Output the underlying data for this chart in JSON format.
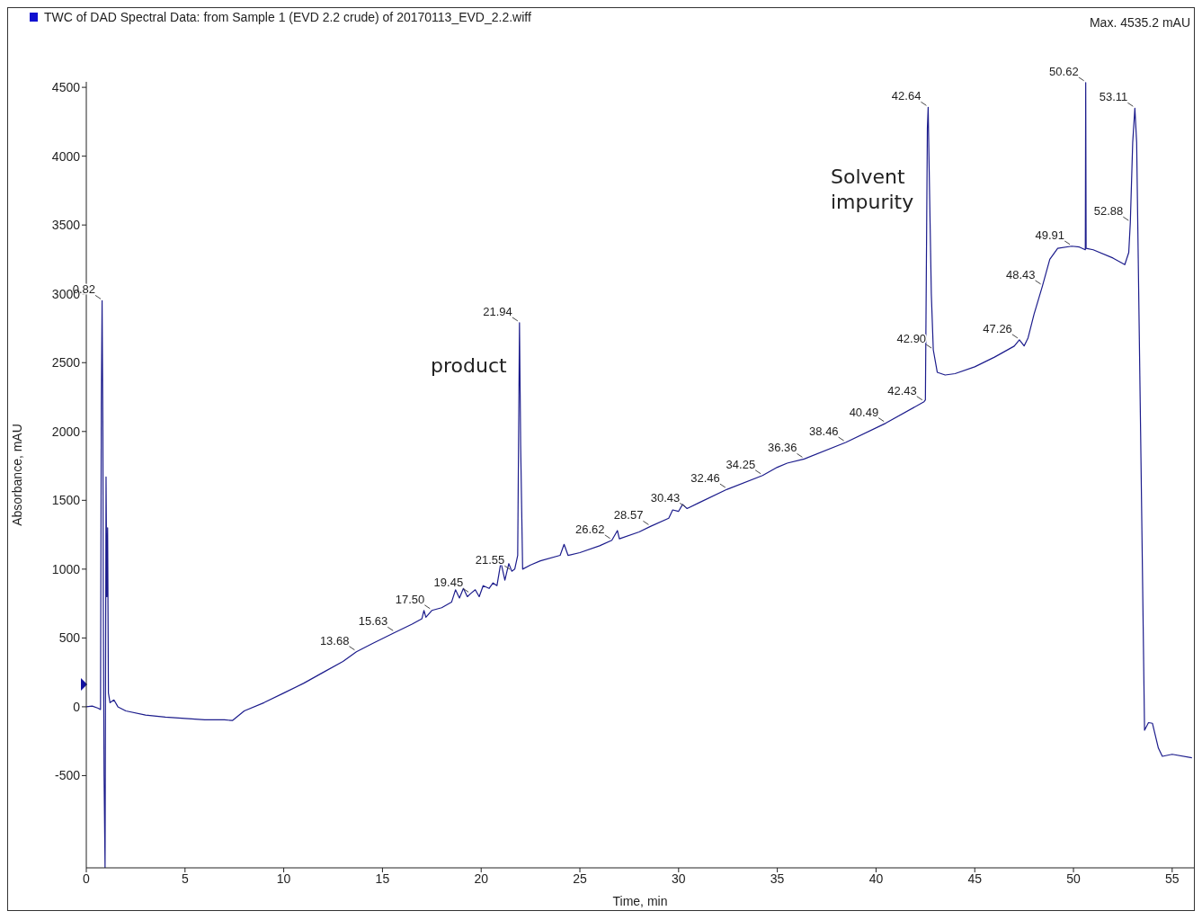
{
  "chart_data": {
    "type": "line",
    "title": "TWC of DAD Spectral Data: from Sample 1 (EVD 2.2 crude) of 20170113_EVD_2.2.wiff",
    "xlabel": "Time, min",
    "ylabel": "Absorbance, mAU",
    "x": [
      0,
      0.3,
      0.6,
      0.72,
      0.76,
      0.8,
      0.84,
      0.86,
      0.9,
      0.95,
      0.98,
      1.0,
      1.04,
      1.08,
      1.12,
      1.2,
      1.4,
      1.6,
      2,
      3,
      4,
      5,
      6,
      7,
      7.4,
      8,
      9,
      10,
      11,
      12,
      13,
      13.68,
      14.5,
      15.63,
      16.5,
      17,
      17.1,
      17.2,
      17.5,
      18,
      18.5,
      18.7,
      18.9,
      19.1,
      19.3,
      19.45,
      19.7,
      19.9,
      20.1,
      20.4,
      20.6,
      20.8,
      21,
      21.2,
      21.4,
      21.55,
      21.7,
      21.85,
      21.94,
      22.0,
      22.1,
      22.5,
      23,
      24,
      24.2,
      24.4,
      25,
      26,
      26.62,
      26.9,
      27,
      28,
      28.57,
      29.5,
      29.7,
      30,
      30.2,
      30.43,
      31,
      32.46,
      34.25,
      35,
      35.5,
      36.36,
      38.46,
      40.49,
      42.43,
      42.5,
      42.6,
      42.64,
      42.68,
      42.8,
      42.9,
      43.1,
      43.5,
      44,
      45,
      46,
      47,
      47.26,
      47.5,
      47.7,
      48,
      48.43,
      48.8,
      49.2,
      49.91,
      50.3,
      50.6,
      50.62,
      50.64,
      51,
      52,
      52.6,
      52.8,
      52.88,
      53.0,
      53.11,
      53.2,
      53.4,
      53.6,
      53.8,
      54.0,
      54.3,
      54.5,
      55,
      56
    ],
    "series": [
      {
        "color": "#1c1c8c",
        "values": [
          0,
          5,
          -10,
          -20,
          2180,
          2950,
          2000,
          800,
          -500,
          -1170,
          500,
          1670,
          800,
          1300,
          100,
          30,
          50,
          0,
          -30,
          -60,
          -75,
          -85,
          -95,
          -95,
          -100,
          -30,
          30,
          100,
          170,
          250,
          330,
          400,
          460,
          540,
          600,
          640,
          700,
          650,
          700,
          720,
          760,
          850,
          790,
          860,
          800,
          820,
          850,
          800,
          880,
          860,
          900,
          880,
          1050,
          920,
          1040,
          985,
          1000,
          1100,
          2790,
          1900,
          1000,
          1030,
          1060,
          1100,
          1180,
          1100,
          1120,
          1170,
          1210,
          1280,
          1220,
          1270,
          1310,
          1370,
          1430,
          1420,
          1470,
          1440,
          1480,
          1580,
          1680,
          1740,
          1770,
          1800,
          1920,
          2060,
          2216,
          2230,
          4200,
          4355,
          4000,
          3000,
          2593,
          2430,
          2410,
          2420,
          2470,
          2540,
          2620,
          2666,
          2621,
          2680,
          2850,
          3058,
          3250,
          3330,
          3346,
          3340,
          3320,
          4535,
          3330,
          3320,
          3260,
          3212,
          3300,
          3520,
          4100,
          4349,
          4100,
          2000,
          -170,
          -115,
          -120,
          -300,
          -360,
          -345,
          -370
        ]
      }
    ],
    "xlim": [
      0,
      56.1
    ],
    "xticks": [
      0,
      5,
      10,
      15,
      20,
      25,
      30,
      35,
      40,
      45,
      50,
      55
    ],
    "ylim": [
      -1170,
      4540
    ],
    "yticks": [
      -500,
      0,
      500,
      1000,
      1500,
      2000,
      2500,
      3000,
      3500,
      4000,
      4500
    ],
    "grid": false,
    "legend": false,
    "marker": "none",
    "line_style": "solid",
    "annotations": [
      "Max. 4535.2 mAU",
      {
        "text": "0.82",
        "x": 0.82,
        "y": 2950
      },
      {
        "text": "13.68",
        "x": 13.68,
        "y": 400
      },
      {
        "text": "15.63",
        "x": 15.63,
        "y": 540
      },
      {
        "text": "17.50",
        "x": 17.5,
        "y": 700
      },
      {
        "text": "19.45",
        "x": 19.45,
        "y": 820
      },
      {
        "text": "21.55",
        "x": 21.55,
        "y": 985
      },
      {
        "text": "21.94",
        "x": 21.94,
        "y": 2790
      },
      "product",
      {
        "text": "26.62",
        "x": 26.62,
        "y": 1210
      },
      {
        "text": "28.57",
        "x": 28.57,
        "y": 1310
      },
      {
        "text": "30.43",
        "x": 30.43,
        "y": 1440
      },
      {
        "text": "32.46",
        "x": 32.46,
        "y": 1580
      },
      {
        "text": "34.25",
        "x": 34.25,
        "y": 1680
      },
      {
        "text": "36.36",
        "x": 36.36,
        "y": 1800
      },
      {
        "text": "38.46",
        "x": 38.46,
        "y": 1920
      },
      {
        "text": "40.49",
        "x": 40.49,
        "y": 2060
      },
      {
        "text": "42.43",
        "x": 42.43,
        "y": 2216
      },
      "Solvent impurity",
      {
        "text": "42.64",
        "x": 42.64,
        "y": 4355
      },
      {
        "text": "42.90",
        "x": 42.9,
        "y": 2593
      },
      {
        "text": "47.26",
        "x": 47.26,
        "y": 2666
      },
      {
        "text": "48.43",
        "x": 48.43,
        "y": 3058
      },
      {
        "text": "49.91",
        "x": 49.91,
        "y": 3346
      },
      {
        "text": "50.62",
        "x": 50.62,
        "y": 4535
      },
      {
        "text": "52.88",
        "x": 52.88,
        "y": 3520
      },
      {
        "text": "53.11",
        "x": 53.11,
        "y": 4349
      }
    ]
  }
}
